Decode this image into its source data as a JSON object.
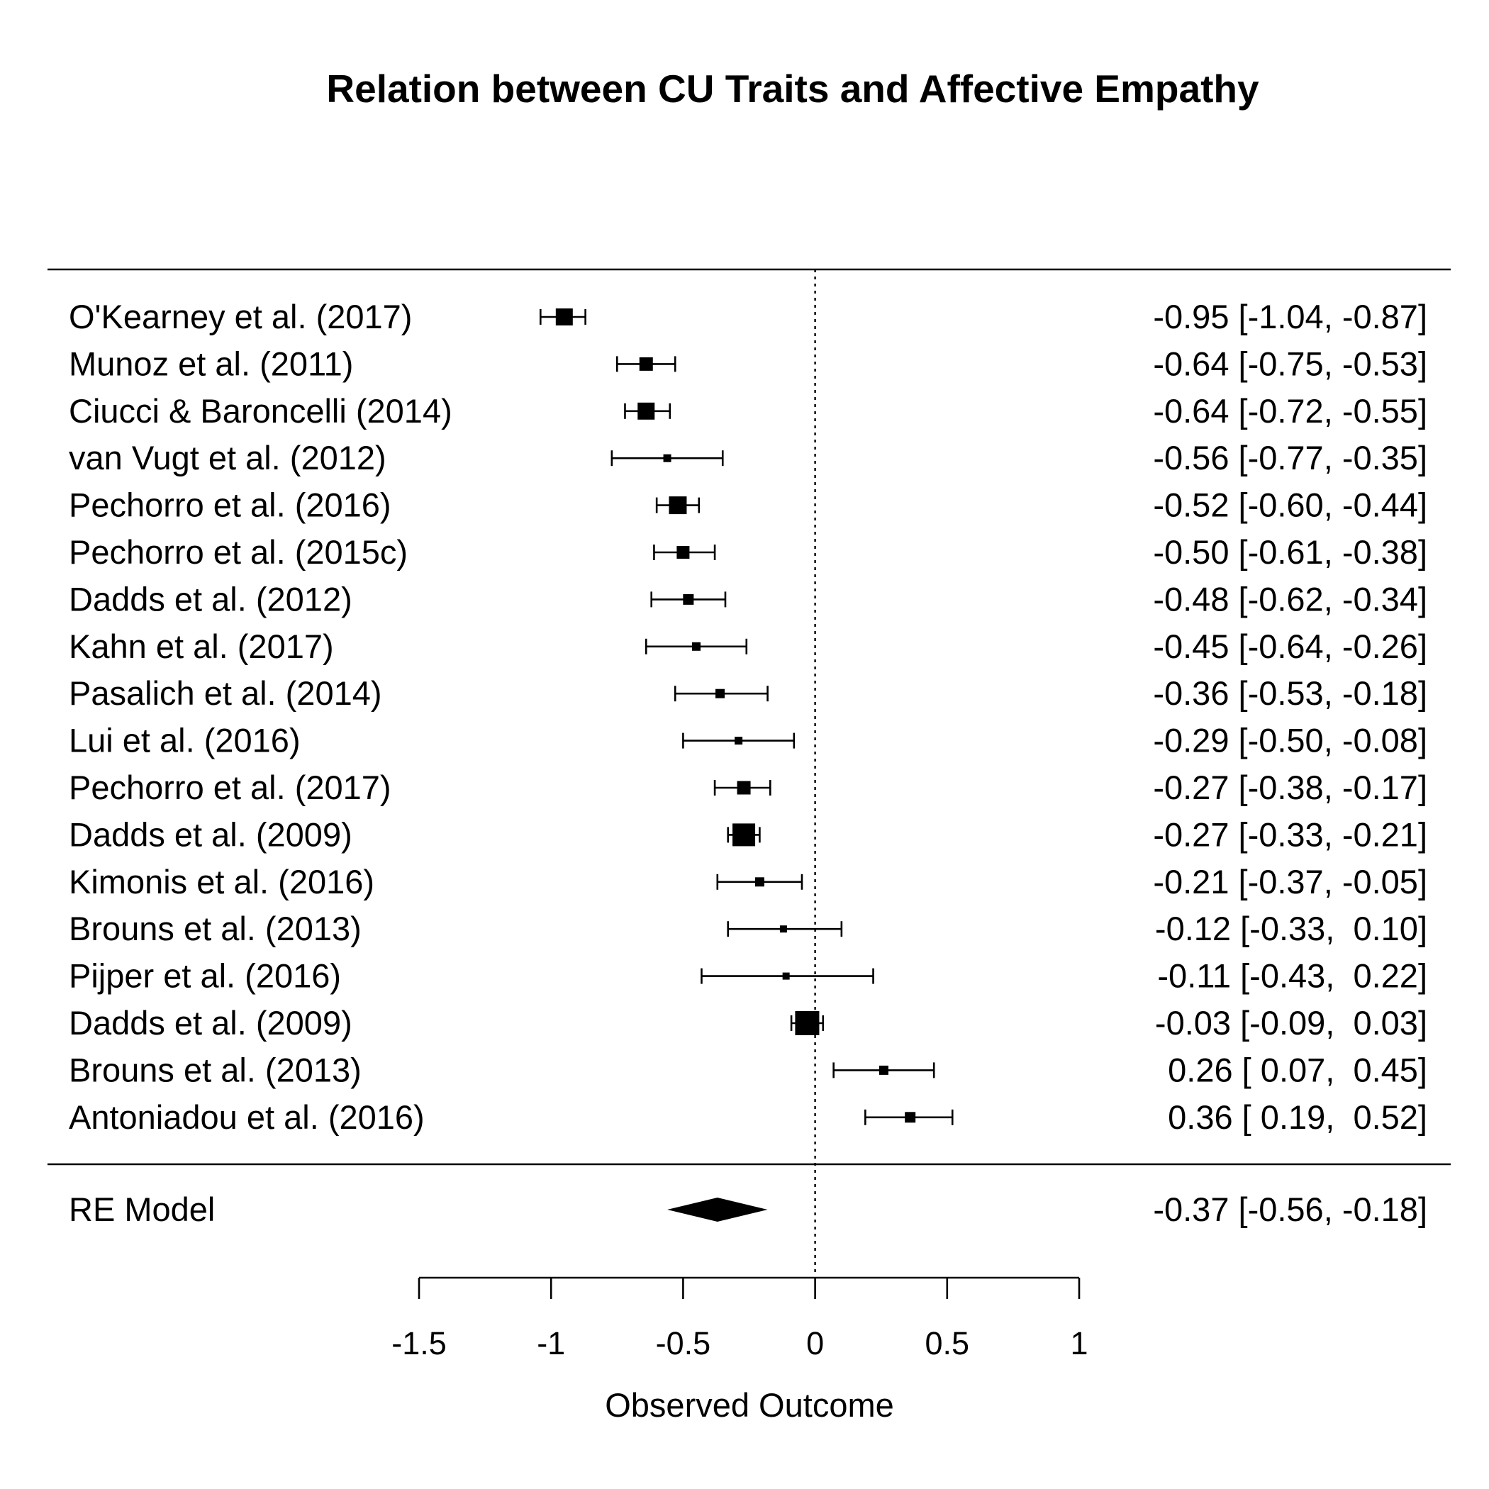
{
  "chart_data": {
    "type": "forest",
    "title": "Relation between CU Traits and Affective Empathy",
    "xlabel": "Observed Outcome",
    "xlim": [
      -1.5,
      1
    ],
    "xticks": [
      -1.5,
      -1,
      -0.5,
      0,
      0.5,
      1
    ],
    "xtick_labels": [
      "-1.5",
      "-1",
      "-0.5",
      "0",
      "0.5",
      "1"
    ],
    "reference_line": 0,
    "studies": [
      {
        "label": "O'Kearney et al. (2017)",
        "estimate": -0.95,
        "lower": -1.04,
        "upper": -0.87,
        "ci_text": "-0.95 [-1.04, -0.87]",
        "marker": 24
      },
      {
        "label": "Munoz et al. (2011)",
        "estimate": -0.64,
        "lower": -0.75,
        "upper": -0.53,
        "ci_text": "-0.64 [-0.75, -0.53]",
        "marker": 19
      },
      {
        "label": "Ciucci & Baroncelli (2014)",
        "estimate": -0.64,
        "lower": -0.72,
        "upper": -0.55,
        "ci_text": "-0.64 [-0.72, -0.55]",
        "marker": 24
      },
      {
        "label": "van Vugt et al. (2012)",
        "estimate": -0.56,
        "lower": -0.77,
        "upper": -0.35,
        "ci_text": "-0.56 [-0.77, -0.35]",
        "marker": 11
      },
      {
        "label": "Pechorro et al. (2016)",
        "estimate": -0.52,
        "lower": -0.6,
        "upper": -0.44,
        "ci_text": "-0.52 [-0.60, -0.44]",
        "marker": 25
      },
      {
        "label": "Pechorro et al. (2015c)",
        "estimate": -0.5,
        "lower": -0.61,
        "upper": -0.38,
        "ci_text": "-0.50 [-0.61, -0.38]",
        "marker": 18
      },
      {
        "label": "Dadds et al. (2012)",
        "estimate": -0.48,
        "lower": -0.62,
        "upper": -0.34,
        "ci_text": "-0.48 [-0.62, -0.34]",
        "marker": 15
      },
      {
        "label": "Kahn et al. (2017)",
        "estimate": -0.45,
        "lower": -0.64,
        "upper": -0.26,
        "ci_text": "-0.45 [-0.64, -0.26]",
        "marker": 12
      },
      {
        "label": "Pasalich et al. (2014)",
        "estimate": -0.36,
        "lower": -0.53,
        "upper": -0.18,
        "ci_text": "-0.36 [-0.53, -0.18]",
        "marker": 13
      },
      {
        "label": "Lui et al. (2016)",
        "estimate": -0.29,
        "lower": -0.5,
        "upper": -0.08,
        "ci_text": "-0.29 [-0.50, -0.08]",
        "marker": 11
      },
      {
        "label": "Pechorro et al. (2017)",
        "estimate": -0.27,
        "lower": -0.38,
        "upper": -0.17,
        "ci_text": "-0.27 [-0.38, -0.17]",
        "marker": 19
      },
      {
        "label": "Dadds et al. (2009)",
        "estimate": -0.27,
        "lower": -0.33,
        "upper": -0.21,
        "ci_text": "-0.27 [-0.33, -0.21]",
        "marker": 32
      },
      {
        "label": "Kimonis et al. (2016)",
        "estimate": -0.21,
        "lower": -0.37,
        "upper": -0.05,
        "ci_text": "-0.21 [-0.37, -0.05]",
        "marker": 13
      },
      {
        "label": "Brouns et al. (2013)",
        "estimate": -0.12,
        "lower": -0.33,
        "upper": 0.1,
        "ci_text": "-0.12 [-0.33,  0.10]",
        "marker": 10
      },
      {
        "label": "Pijper et al. (2016)",
        "estimate": -0.11,
        "lower": -0.43,
        "upper": 0.22,
        "ci_text": "-0.11 [-0.43,  0.22]",
        "marker": 10
      },
      {
        "label": "Dadds et al. (2009)",
        "estimate": -0.03,
        "lower": -0.09,
        "upper": 0.03,
        "ci_text": "-0.03 [-0.09,  0.03]",
        "marker": 34
      },
      {
        "label": "Brouns et al. (2013)",
        "estimate": 0.26,
        "lower": 0.07,
        "upper": 0.45,
        "ci_text": " 0.26 [ 0.07,  0.45]",
        "marker": 13
      },
      {
        "label": "Antoniadou et al. (2016)",
        "estimate": 0.36,
        "lower": 0.19,
        "upper": 0.52,
        "ci_text": " 0.36 [ 0.19,  0.52]",
        "marker": 15
      }
    ],
    "summary": {
      "label": "RE Model",
      "estimate": -0.37,
      "lower": -0.56,
      "upper": -0.18,
      "ci_text": "-0.37 [-0.56, -0.18]"
    }
  }
}
